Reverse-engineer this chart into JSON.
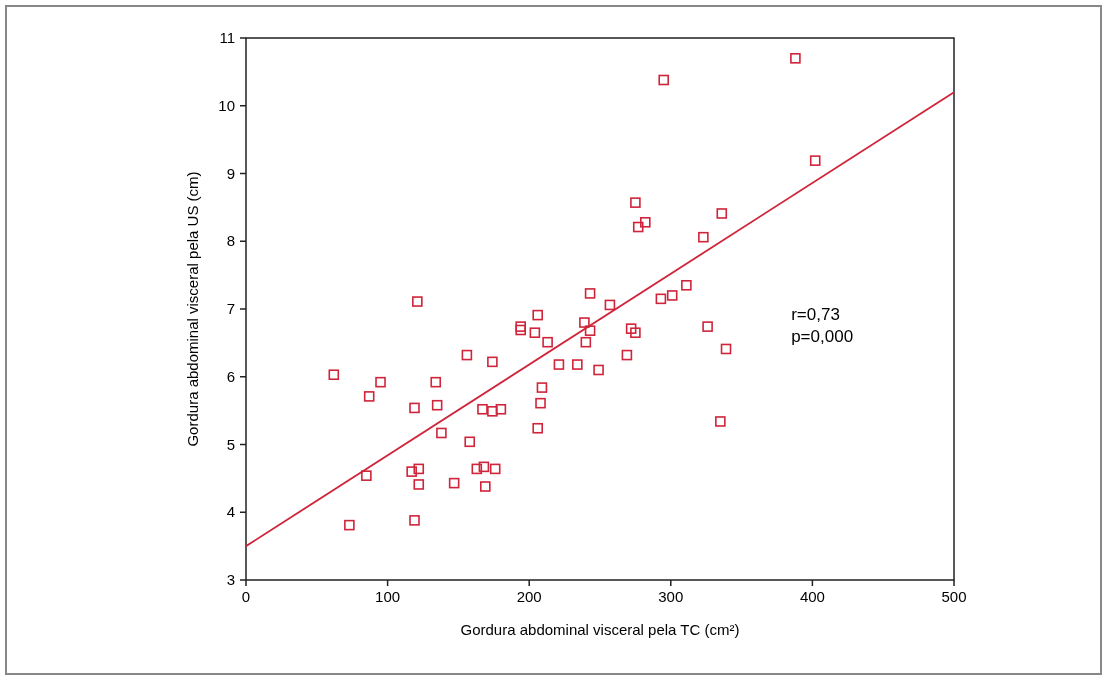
{
  "chart_data": {
    "type": "scatter",
    "xlabel": "Gordura abdominal visceral pela TC (cm²)",
    "ylabel": "Gordura abdominal visceral pela US (cm)",
    "xlim": [
      0,
      500
    ],
    "ylim": [
      3,
      11
    ],
    "xticks": [
      0,
      100,
      200,
      300,
      400,
      500
    ],
    "yticks": [
      3,
      4,
      5,
      6,
      7,
      8,
      9,
      10,
      11
    ],
    "grid": false,
    "marker": "square",
    "annotations": [
      "r=0,73",
      "p=0,000"
    ],
    "series": [
      {
        "color": "#d0243a",
        "x": [
          295,
          388,
          402,
          275,
          336,
          282,
          277,
          323,
          311,
          301,
          293,
          243,
          257,
          239,
          243,
          240,
          272,
          275,
          326,
          339,
          269,
          234,
          249,
          335,
          121,
          206,
          194,
          194,
          204,
          213,
          221,
          156,
          174,
          62,
          95,
          134,
          87,
          119,
          135,
          167,
          174,
          180,
          209,
          208,
          206,
          138,
          158,
          117,
          122,
          163,
          168,
          176,
          85,
          122,
          147,
          169,
          73,
          119
        ],
        "values": [
          10.38,
          10.7,
          9.19,
          8.57,
          8.41,
          8.28,
          8.21,
          8.06,
          7.35,
          7.2,
          7.15,
          7.23,
          7.06,
          6.8,
          6.68,
          6.51,
          6.71,
          6.65,
          6.74,
          6.41,
          6.32,
          6.18,
          6.1,
          5.34,
          7.11,
          6.91,
          6.74,
          6.69,
          6.65,
          6.51,
          6.18,
          6.32,
          6.22,
          6.03,
          5.92,
          5.92,
          5.71,
          5.54,
          5.58,
          5.52,
          5.49,
          5.52,
          5.84,
          5.61,
          5.24,
          5.17,
          5.04,
          4.6,
          4.64,
          4.64,
          4.67,
          4.64,
          4.54,
          4.41,
          4.43,
          4.38,
          3.81,
          3.88
        ]
      },
      {
        "type": "line",
        "color": "#d0243a",
        "marker": "none",
        "x": [
          0,
          500
        ],
        "values": [
          3.5,
          10.2
        ]
      }
    ]
  }
}
